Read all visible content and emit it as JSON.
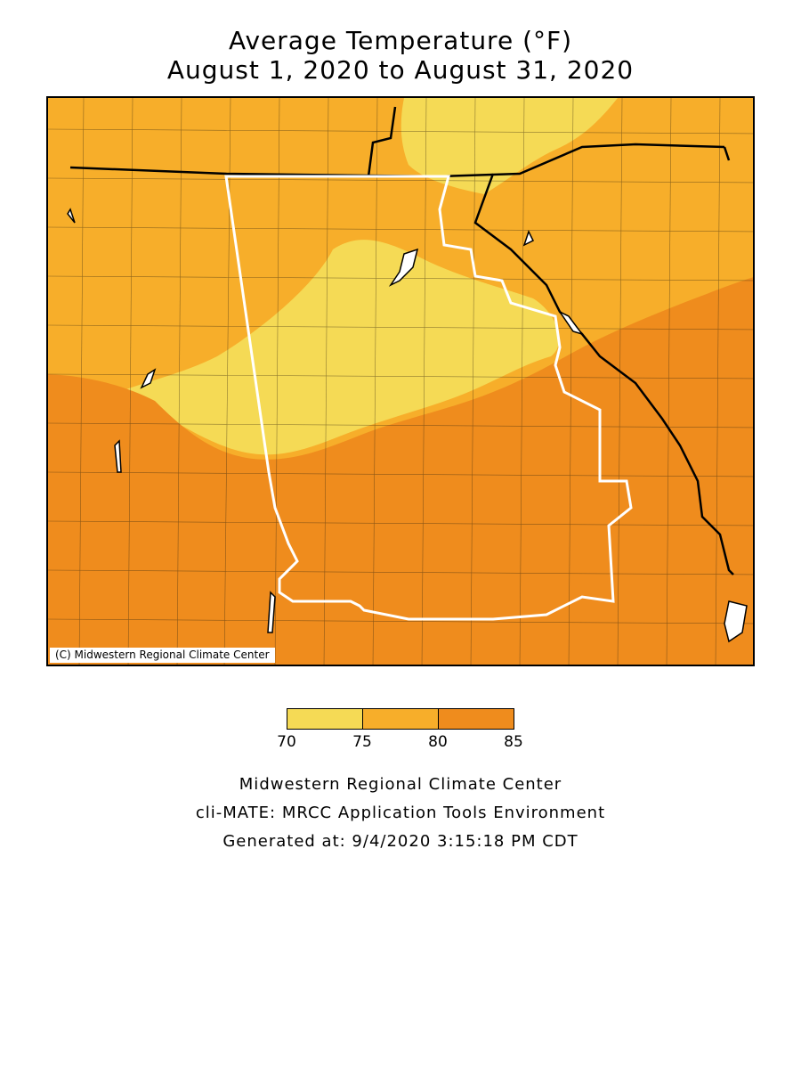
{
  "title": {
    "line1": "Average Temperature (°F)",
    "line2": "August 1, 2020 to August 31, 2020"
  },
  "map": {
    "copyright": "(C) Midwestern Regional Climate Center",
    "colors": {
      "band_70_75": "#f5da55",
      "band_75_80": "#f7ae2a",
      "band_80_85": "#ef8c1d",
      "state_border": "#000000",
      "focus_state_border": "#ffffff",
      "county_line": "#3a2a10"
    }
  },
  "legend": {
    "bins": [
      {
        "from": 70,
        "to": 75,
        "color": "#f5da55"
      },
      {
        "from": 75,
        "to": 80,
        "color": "#f7ae2a"
      },
      {
        "from": 80,
        "to": 85,
        "color": "#ef8c1d"
      }
    ],
    "ticks": [
      "70",
      "75",
      "80",
      "85"
    ]
  },
  "footer": {
    "line1": "Midwestern Regional Climate Center",
    "line2": "cli-MATE: MRCC Application Tools Environment",
    "line3": "Generated at: 9/4/2020 3:15:18 PM CDT"
  }
}
